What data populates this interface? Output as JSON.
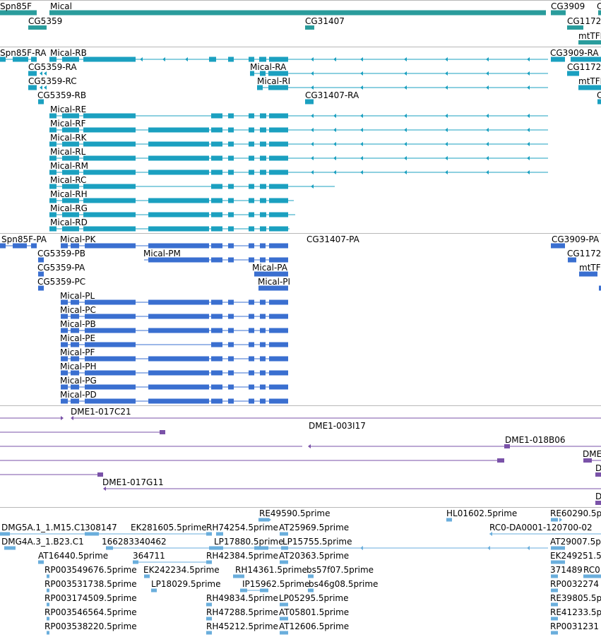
{
  "colors": {
    "gene": "#2a9c9c",
    "mrna": "#1ba0c0",
    "protein": "#3a6fd0",
    "clone": "#7a52a8",
    "est": "#6aaedc",
    "separator": "#b8b8b8"
  },
  "tracks": {
    "genes": {
      "labels": [
        "Spn85F",
        "Mical",
        "CG3909",
        "C",
        "CG5359",
        "CG31407",
        "CG1172",
        "mtTFB"
      ]
    },
    "transcripts": {
      "labels": [
        "Spn85F-RA",
        "Mical-RB",
        "CG3909-RA",
        "CG5359-RA",
        "Mical-RA",
        "CG1172",
        "CG5359-RC",
        "Mical-RI",
        "mtTFB",
        "CG5359-RB",
        "CG31407-RA",
        "C",
        "Mical-RE",
        "Mical-RF",
        "Mical-RK",
        "Mical-RL",
        "Mical-RM",
        "Mical-RC",
        "Mical-RH",
        "Mical-RG",
        "Mical-RD"
      ]
    },
    "proteins": {
      "labels": [
        "Spn85F-PA",
        "Mical-PK",
        "CG31407-PA",
        "CG3909-PA",
        "CG5359-PB",
        "Mical-PM",
        "CG1172",
        "CG5359-PA",
        "Mical-PA",
        "mtTFB",
        "CG5359-PC",
        "Mical-PI",
        "Mical-PL",
        "Mical-PC",
        "Mical-PB",
        "Mical-PE",
        "Mical-PF",
        "Mical-PH",
        "Mical-PG",
        "Mical-PD"
      ]
    },
    "clones": {
      "labels": [
        "DME1-017C21",
        "DME1-003I17",
        "DME1-018B06",
        "DME",
        "D",
        "DME1-017G11",
        "D"
      ]
    },
    "ests": {
      "labels": [
        "RE49590.5prime",
        "HL01602.5prime",
        "RE60290.5p",
        "DMG5A.1_1.M15.C1",
        "308147",
        "EK281605.5prime",
        "RH74254.5prime",
        "AT25969.5prime",
        "RC0-DA0001-120700-02",
        "DMG4A.3_1.B23.C1",
        "166283340462",
        "LP17880.5prime",
        "LP15755.5prime",
        "AT29007.5p",
        "AT16440.5prime",
        "364711",
        "RH42384.5prime",
        "AT20363.5prime",
        "EK249251.5",
        "RP003549676.5prime",
        "EK242234.5prime",
        "RH14361.5prime",
        "bs57f07.5prime",
        "371489",
        "RC0",
        "RP003531738.5prime",
        "LP18029.5prime",
        "IP15962.5prime",
        "bs46g08.5prime",
        "RP0032274",
        "RP003174509.5prime",
        "RH49834.5prime",
        "LP05295.5prime",
        "RE39805.5p",
        "RP003546564.5prime",
        "RH47288.5prime",
        "AT05801.5prime",
        "RE41233.5p",
        "RP003538220.5prime",
        "RH45212.5prime",
        "AT12606.5prime",
        "RP0031231"
      ]
    }
  }
}
